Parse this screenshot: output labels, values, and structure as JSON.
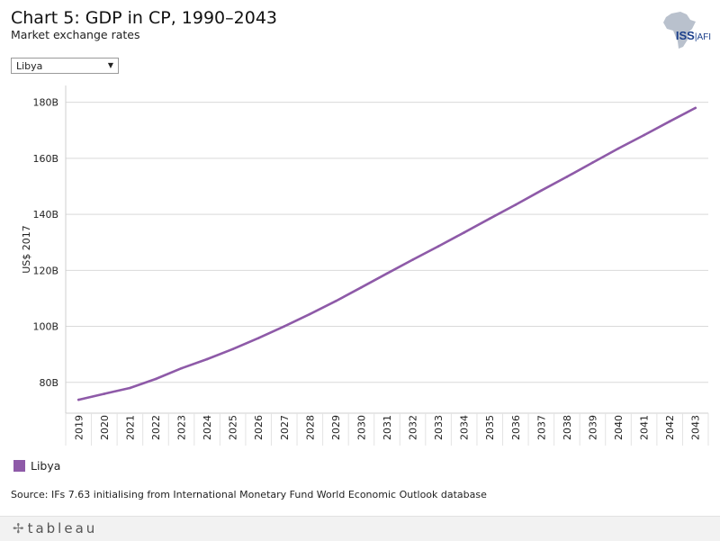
{
  "header": {
    "title": "Chart 5: GDP in CP, 1990–2043",
    "subtitle": "Market exchange rates"
  },
  "logo": {
    "text": "ISS",
    "sub": "AFI"
  },
  "filter": {
    "selected": "Libya",
    "icon": "chevron-down-icon"
  },
  "legend": {
    "label": "Libya",
    "color": "#8e5aa8"
  },
  "source": "Source: IFs 7.63 initialising from International Monetary Fund World Economic Outlook database",
  "footer": {
    "brand": "tableau",
    "icon": "tableau-plus-icon"
  },
  "chart_data": {
    "type": "line",
    "title": "Chart 5: GDP in CP, 1990–2043",
    "subtitle": "Market exchange rates",
    "xlabel": "",
    "ylabel": "US$ 2017",
    "ylim": [
      69,
      186
    ],
    "yticks": [
      80,
      100,
      120,
      140,
      160,
      180
    ],
    "ytick_labels": [
      "80B",
      "100B",
      "120B",
      "140B",
      "160B",
      "180B"
    ],
    "grid": true,
    "legend_position": "bottom-left",
    "x": [
      2019,
      2020,
      2021,
      2022,
      2023,
      2024,
      2025,
      2026,
      2027,
      2028,
      2029,
      2030,
      2031,
      2032,
      2033,
      2034,
      2035,
      2036,
      2037,
      2038,
      2039,
      2040,
      2041,
      2042,
      2043
    ],
    "series": [
      {
        "name": "Libya",
        "color": "#8e5aa8",
        "values": [
          73.8,
          75.9,
          78.0,
          81.2,
          85.0,
          88.3,
          91.9,
          95.8,
          100.0,
          104.4,
          109.0,
          113.9,
          118.9,
          123.8,
          128.6,
          133.5,
          138.5,
          143.4,
          148.5,
          153.4,
          158.5,
          163.5,
          168.3,
          173.2,
          178.0
        ]
      }
    ]
  }
}
